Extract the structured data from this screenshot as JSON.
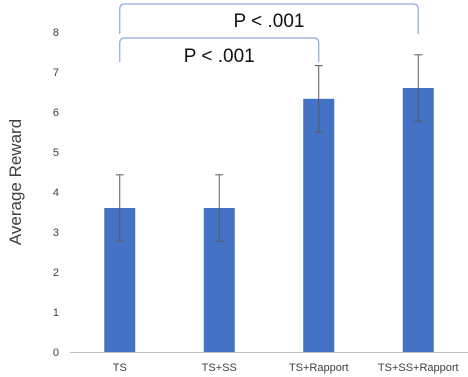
{
  "chart_data": {
    "type": "bar",
    "title": "",
    "xlabel": "",
    "ylabel": "Average Reward",
    "ylim": [
      0,
      8
    ],
    "yticks": [
      0,
      1,
      2,
      3,
      4,
      5,
      6,
      7,
      8
    ],
    "grid": false,
    "categories": [
      "TS",
      "TS+SS",
      "TS+Rapport",
      "TS+SS+Rapport"
    ],
    "values": [
      3.6,
      3.6,
      6.33,
      6.6
    ],
    "error": [
      0.83,
      0.83,
      0.83,
      0.83
    ],
    "colors": {
      "bar": "#4472c4",
      "error_bar": "#595959",
      "axis": "#bfbfbf",
      "bracket": "#8faadc",
      "text": "#404040",
      "annotation_text": "#111111"
    },
    "annotations": [
      {
        "text": "P < .001",
        "from": "TS",
        "to": "TS+Rapport"
      },
      {
        "text": "P < .001",
        "from": "TS",
        "to": "TS+SS+Rapport"
      }
    ]
  }
}
